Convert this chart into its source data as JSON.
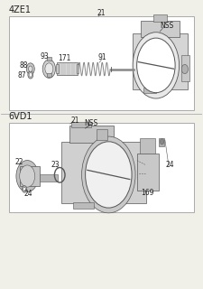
{
  "bg_color": "#f0efe8",
  "title_4ze1": "4ZE1",
  "title_6vd1": "6VD1",
  "line_color": "#555555",
  "text_color": "#222222",
  "box_edge_color": "#aaaaaa",
  "box_face_color": "#ffffff",
  "divider_color": "#aaaaaa"
}
